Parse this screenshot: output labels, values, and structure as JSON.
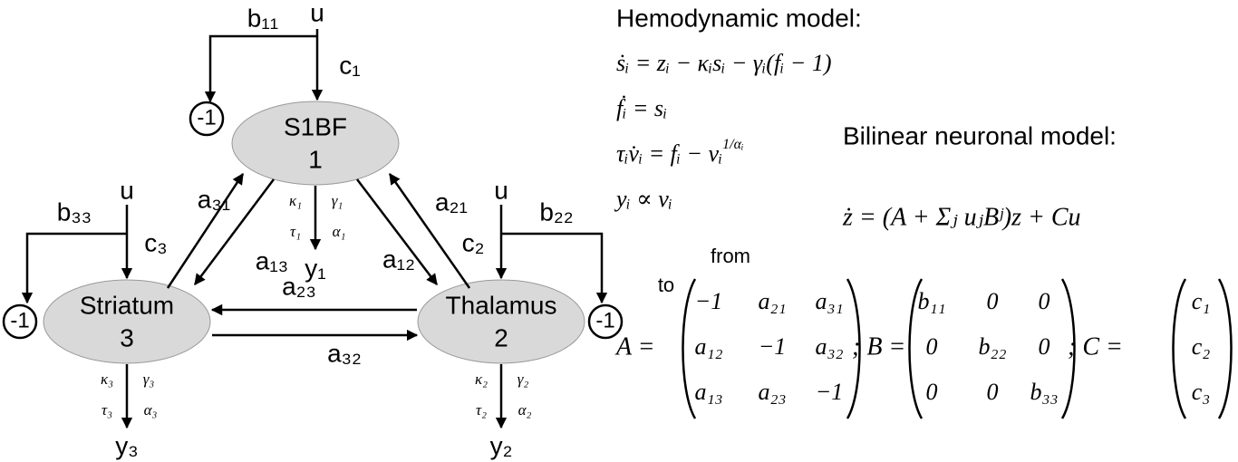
{
  "nodes": [
    {
      "name": "S1BF",
      "number": "1"
    },
    {
      "name": "Thalamus",
      "number": "2"
    },
    {
      "name": "Striatum",
      "number": "3"
    }
  ],
  "inputs": [
    {
      "u": "u",
      "c": "c₁",
      "b": "b₁₁"
    },
    {
      "u": "u",
      "c": "c₂",
      "b": "b₂₂"
    },
    {
      "u": "u",
      "c": "c₃",
      "b": "b₃₃"
    }
  ],
  "self_loops": [
    "-1",
    "-1",
    "-1"
  ],
  "connections": [
    "a₃₁",
    "a₁₃",
    "a₂₁",
    "a₁₂",
    "a₂₃",
    "a₃₂"
  ],
  "outputs": [
    {
      "y": "y₁",
      "kappa": "κ₁",
      "gamma": "γ₁",
      "tau": "τ₁",
      "alpha": "α₁"
    },
    {
      "y": "y₂",
      "kappa": "κ₂",
      "gamma": "γ₂",
      "tau": "τ₂",
      "alpha": "α₂"
    },
    {
      "y": "y₃",
      "kappa": "κ₃",
      "gamma": "γ₃",
      "tau": "τ₃",
      "alpha": "α₃"
    }
  ],
  "hemodynamic": {
    "title": "Hemodynamic model:",
    "equations": [
      {
        "text": "ṡᵢ = zᵢ − κᵢsᵢ − γᵢ(fᵢ − 1)"
      },
      {
        "text": "ḟᵢ = sᵢ"
      },
      {
        "text": "τᵢv̇ᵢ = fᵢ − vᵢ",
        "sup": "1/αᵢ"
      },
      {
        "text": "yᵢ ∝ vᵢ"
      }
    ]
  },
  "bilinear": {
    "title": "Bilinear neuronal model:",
    "equation": "ż = (A + Σⱼ uⱼBʲ)z + Cu",
    "from": "from",
    "to": "to",
    "matrices": [
      {
        "label": "A =",
        "rows": [
          [
            "−1",
            "a₂₁",
            "a₃₁"
          ],
          [
            "a₁₂",
            "−1",
            "a₃₂"
          ],
          [
            "a₁₃",
            "a₂₃",
            "−1"
          ]
        ]
      },
      {
        "label": "; B =",
        "rows": [
          [
            "b₁₁",
            "0",
            "0"
          ],
          [
            "0",
            "b₂₂",
            "0"
          ],
          [
            "0",
            "0",
            "b₃₃"
          ]
        ]
      },
      {
        "label": "; C =",
        "rows": [
          [
            "c₁"
          ],
          [
            "c₂"
          ],
          [
            "c₃"
          ]
        ]
      }
    ]
  }
}
